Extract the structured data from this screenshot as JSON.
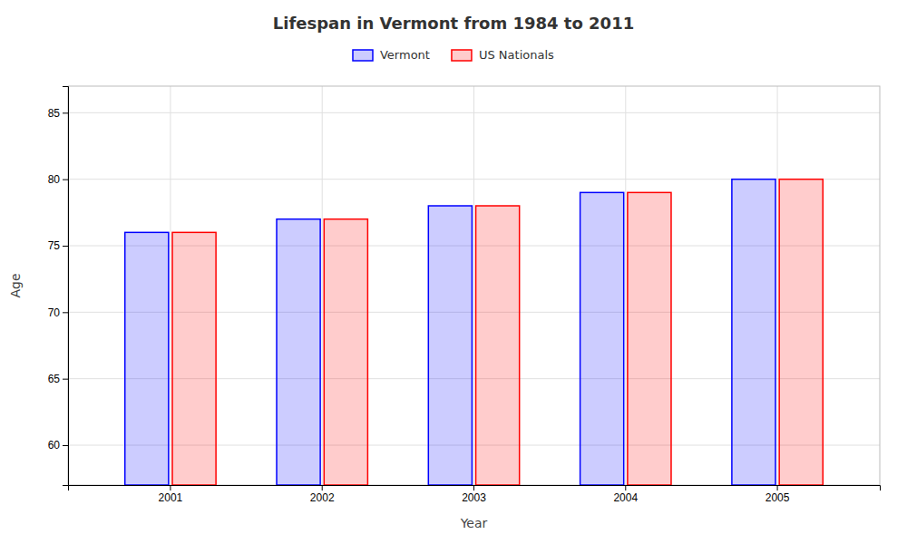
{
  "chart_data": {
    "type": "bar",
    "title": "Lifespan in Vermont from 1984 to 2011",
    "x_label": "Year",
    "y_label": "Age",
    "categories": [
      "2001",
      "2002",
      "2003",
      "2004",
      "2005"
    ],
    "series": [
      {
        "name": "Vermont",
        "color": "#0000ff",
        "values": [
          76,
          77,
          78,
          79,
          80
        ]
      },
      {
        "name": "US Nationals",
        "color": "#ff0000",
        "values": [
          76,
          77,
          78,
          79,
          80
        ]
      }
    ],
    "ylim": [
      57,
      87
    ],
    "yticks": [
      60,
      65,
      70,
      75,
      80,
      85
    ],
    "grid": true,
    "legend": "top"
  }
}
